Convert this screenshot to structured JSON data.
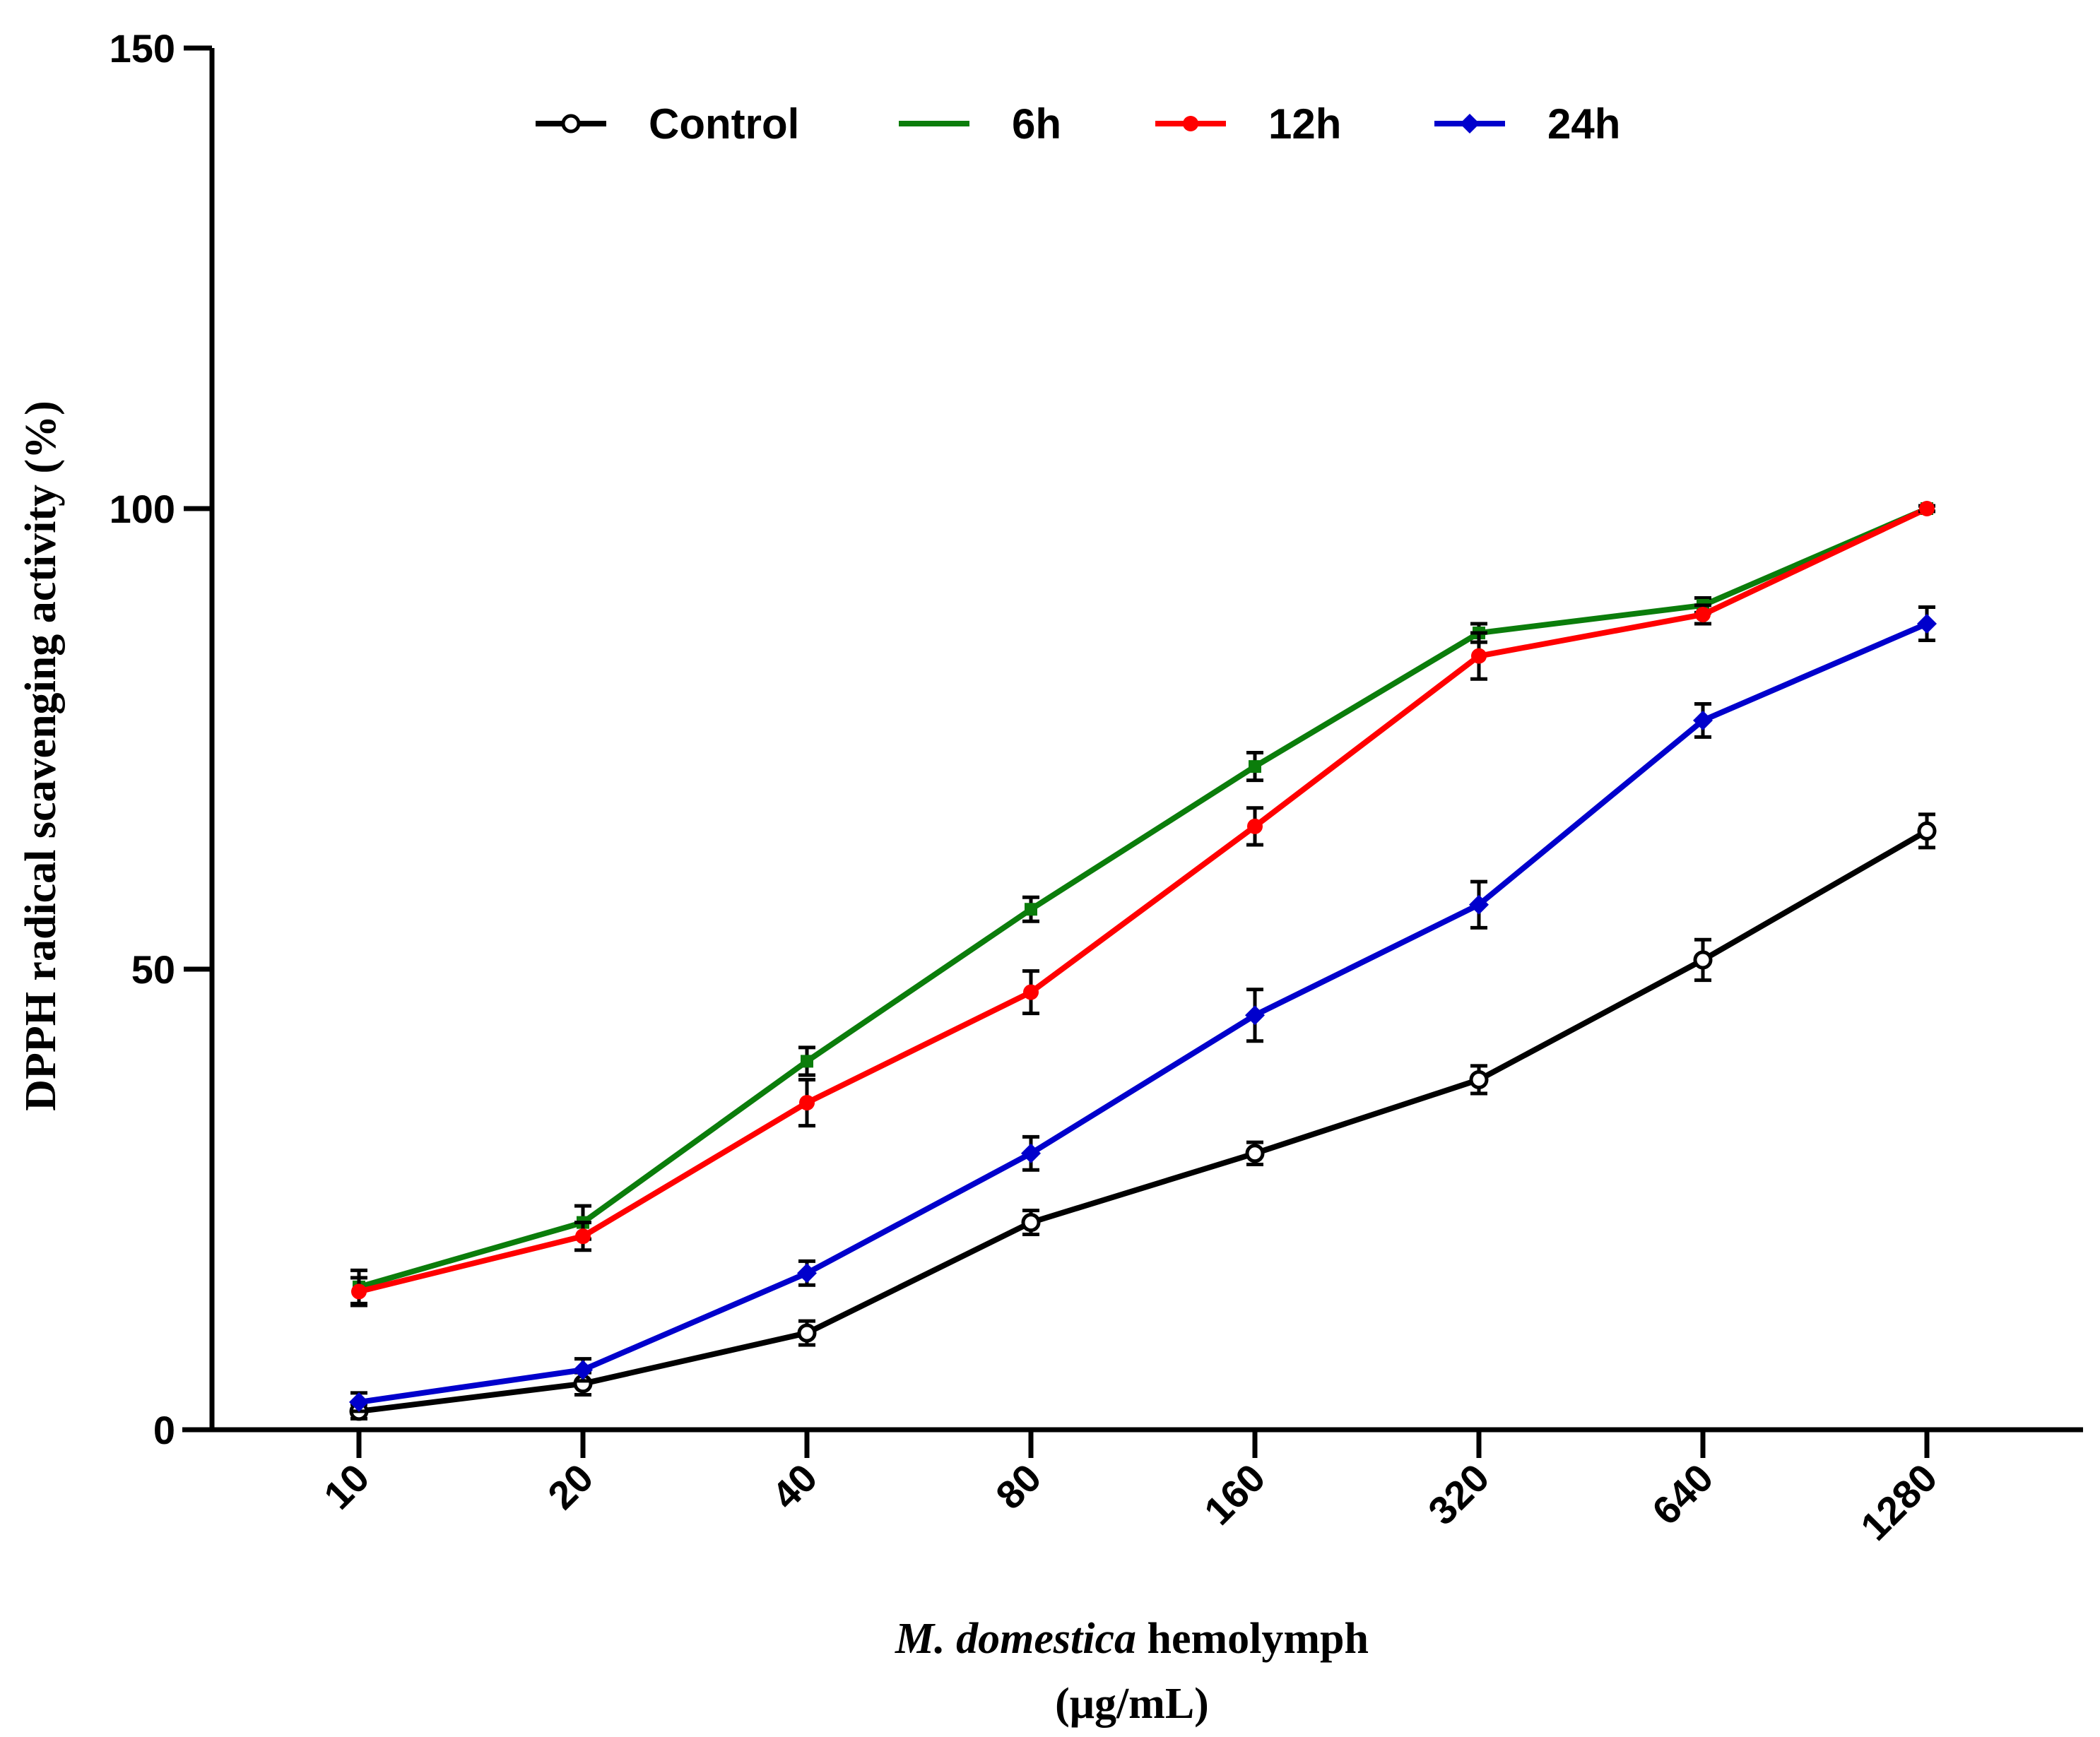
{
  "chart_data": {
    "type": "line",
    "title": "",
    "xlabel": {
      "italic_part": "M. domestica",
      "regular_part": " hemolymph",
      "unit": "(μg/mL)"
    },
    "ylabel": "DPPH radical scavenging activity (%)",
    "ylim": [
      0,
      150
    ],
    "yticks": [
      "0",
      "50",
      "100",
      "150"
    ],
    "categories": [
      "10",
      "20",
      "40",
      "80",
      "160",
      "320",
      "640",
      "1280"
    ],
    "legend_position": "top",
    "series": [
      {
        "name": "Control",
        "color": "#000000",
        "marker": "open-circle",
        "values": [
          2,
          5,
          10.5,
          22.5,
          30,
          38,
          51,
          65
        ],
        "errors": [
          0.8,
          1.2,
          1.3,
          1.3,
          1.2,
          1.5,
          2.2,
          1.8
        ]
      },
      {
        "name": "6h",
        "color": "#0b7d0b",
        "marker": "square",
        "values": [
          15.5,
          22.5,
          40,
          56.5,
          72,
          86.5,
          89.5,
          100
        ],
        "errors": [
          1.8,
          1.8,
          1.5,
          1.3,
          1.5,
          1.0,
          0.8,
          0.3
        ]
      },
      {
        "name": "12h",
        "color": "#ff0000",
        "marker": "dot",
        "values": [
          15,
          21,
          35.5,
          47.5,
          65.5,
          84,
          88.5,
          100
        ],
        "errors": [
          1.5,
          1.5,
          2.5,
          2.3,
          2.0,
          2.5,
          1.0,
          0.3
        ]
      },
      {
        "name": "24h",
        "color": "#0000cc",
        "marker": "diamond",
        "values": [
          3,
          6.5,
          17,
          30,
          45,
          57,
          77,
          87.5
        ],
        "errors": [
          1.0,
          1.2,
          1.3,
          1.8,
          2.8,
          2.5,
          1.8,
          1.8
        ]
      }
    ]
  }
}
